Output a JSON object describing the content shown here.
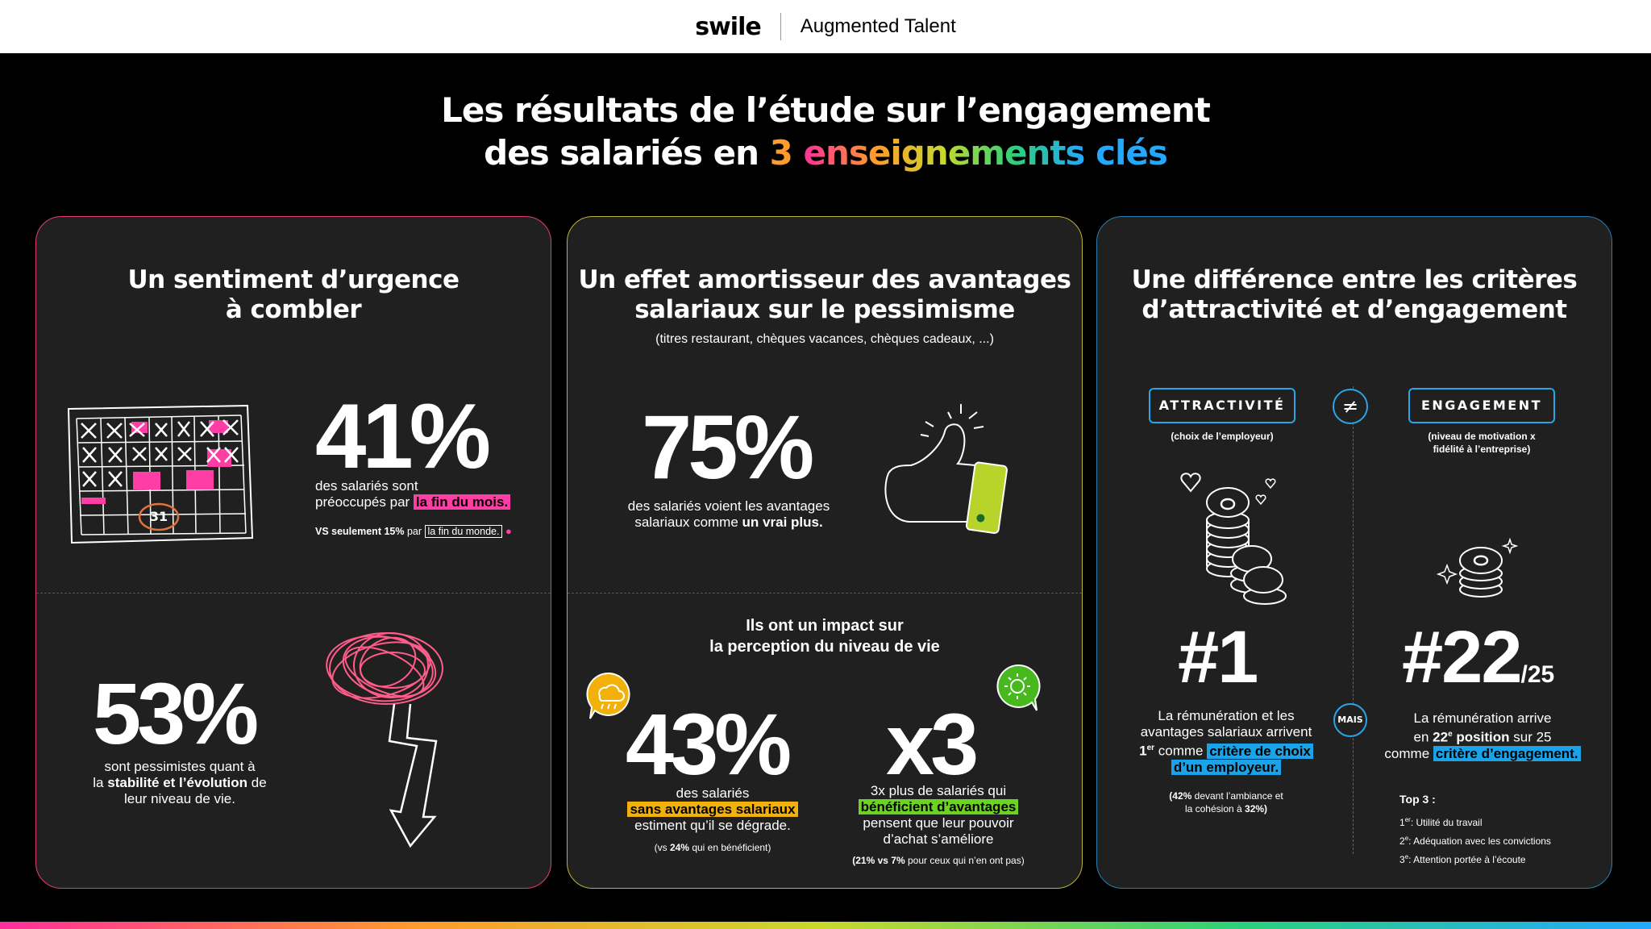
{
  "header": {
    "logo": "swile",
    "subtitle": "Augmented Talent"
  },
  "headline": {
    "line1": "Les résultats de l’étude sur l’engagement",
    "line2_a": "des salariés en",
    "line2_num": "3",
    "line2_b": "enseignements",
    "line2_c": "clés"
  },
  "panel1": {
    "title_line1": "Un sentiment d’urgence",
    "title_line2": "à combler",
    "calendar_day": "31",
    "stat1": "41%",
    "stat1_text_a": "des salariés sont",
    "stat1_text_b": "préoccupés par",
    "stat1_highlight": "la fin du mois.",
    "vs_a": "VS seulement 15%",
    "vs_b": "par",
    "vs_box": "la fin du monde.",
    "stat2": "53%",
    "stat2_line1": "sont pessimistes quant à",
    "stat2_line2_a": "la",
    "stat2_line2_b": "stabilité et l’évolution",
    "stat2_line2_c": "de",
    "stat2_line3": "leur niveau de vie."
  },
  "panel2": {
    "title_line1": "Un effet amortisseur des avantages",
    "title_line2": "salariaux sur le pessimisme",
    "subtitle": "(titres restaurant, chèques vacances, chèques cadeaux, ...)",
    "stat1": "75%",
    "stat1_line1": "des salariés voient les avantages",
    "stat1_line2_a": "salariaux comme",
    "stat1_line2_b": "un vrai plus.",
    "impact_line1": "Ils ont un impact sur",
    "impact_line2": "la perception du niveau de vie",
    "stat2": "43%",
    "stat2_line1": "des salariés",
    "stat2_highlight": "sans avantages salariaux",
    "stat2_line3": "estiment qu’il se dégrade.",
    "stat2_note_a": "(vs",
    "stat2_note_b": "24%",
    "stat2_note_c": "qui en bénéficient)",
    "stat3": "x3",
    "stat3_line1": "3x plus de salariés qui",
    "stat3_highlight": "bénéficient d’avantages",
    "stat3_line3": "pensent que leur pouvoir",
    "stat3_line4": "d’achat s’améliore",
    "stat3_note_a": "(21% vs 7%",
    "stat3_note_b": "pour ceux qui n’en ont pas)"
  },
  "panel3": {
    "title_line1": "Une différence entre les critères",
    "title_line2": "d’attractivité et d’engagement",
    "tag_left": "ATTRACTIVITÉ",
    "tag_left_sub": "(choix de l’employeur)",
    "neq": "≠",
    "tag_right": "ENGAGEMENT",
    "tag_right_sub_1": "(niveau de motivation x",
    "tag_right_sub_2": "fidélité à l’entreprise)",
    "rank_left": "#1",
    "rank_right": "#22",
    "rank_right_suffix": "/25",
    "mais": "MAIS",
    "left_line1": "La rémunération et les",
    "left_line2": "avantages salariaux arrivent",
    "left_line3_a": "1",
    "left_line3_sup": "er",
    "left_line3_b": "comme",
    "left_hl_1": "critère de choix",
    "left_hl_2": "d’un employeur.",
    "left_note_a": "(42%",
    "left_note_b": "devant l’ambiance et",
    "left_note_c": "la cohésion à",
    "left_note_d": "32%)",
    "right_line1": "La rémunération arrive",
    "right_line2_a": "en",
    "right_line2_b": "22",
    "right_line2_sup": "e",
    "right_line2_c": "position",
    "right_line2_d": "sur 25",
    "right_line3_a": "comme",
    "right_hl": "critère d’engagement.",
    "top3_title": "Top 3 :",
    "top3": [
      {
        "n": "1",
        "sup": "er",
        "text": ": Utilité du travail"
      },
      {
        "n": "2",
        "sup": "e",
        "text": ": Adéquation avec les convictions"
      },
      {
        "n": "3",
        "sup": "e",
        "text": ": Attention portée à l’écoute"
      }
    ]
  },
  "colors": {
    "pink": "#ff3ea5",
    "yellow": "#f2b10a",
    "green": "#6bd323",
    "blue": "#1aa3e8",
    "panel_bg": "#202020"
  }
}
